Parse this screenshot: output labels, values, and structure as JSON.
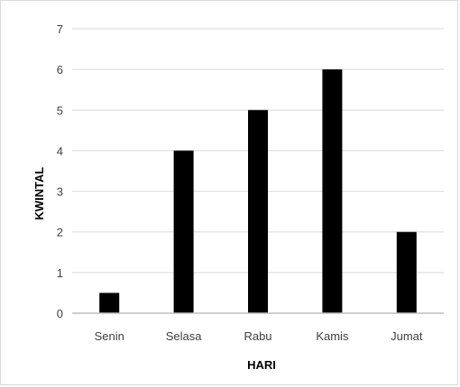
{
  "chart_data": {
    "type": "bar",
    "title": "",
    "xlabel": "HARI",
    "ylabel": "KWINTAL",
    "categories": [
      "Senin",
      "Selasa",
      "Rabu",
      "Kamis",
      "Jumat"
    ],
    "values": [
      0.5,
      4,
      5,
      6,
      2
    ],
    "ylim": [
      0,
      7
    ],
    "yticks": [
      "0",
      "1",
      "2",
      "3",
      "4",
      "5",
      "6",
      "7"
    ],
    "grid": true,
    "legend": "none",
    "colors": {
      "bar": "#000000",
      "grid": "#d9d9d9",
      "axis": "#bfbfbf"
    }
  }
}
